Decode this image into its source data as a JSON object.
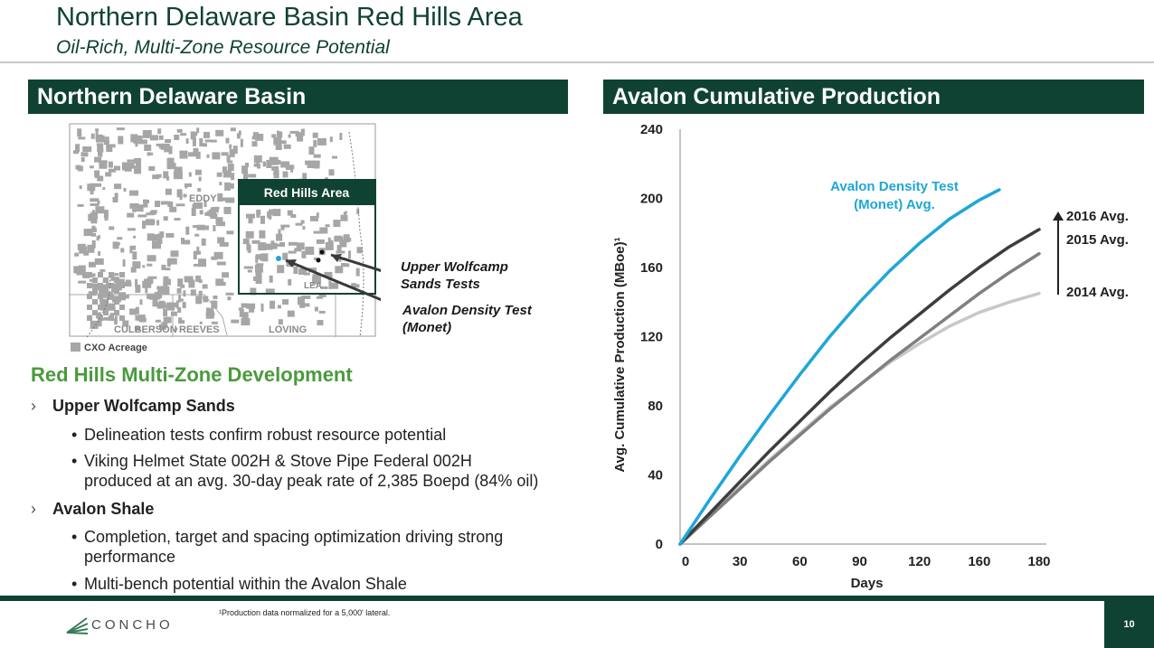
{
  "header": {
    "title": "Northern Delaware Basin Red Hills Area",
    "subtitle": "Oil-Rich, Multi-Zone Resource Potential"
  },
  "left_panel": {
    "heading": "Northern Delaware Basin",
    "map": {
      "inset_label": "Red Hills Area",
      "counties": [
        "EDDY",
        "LEA",
        "CULBERSON",
        "REEVES",
        "LOVING"
      ],
      "callout_upper_wolfcamp": [
        "Upper Wolfcamp",
        "Sands Tests"
      ],
      "callout_avalon": [
        "Avalon Density Test",
        "(Monet)"
      ],
      "legend_label": "CXO Acreage"
    },
    "section_heading": "Red Hills Multi-Zone Development",
    "bullets": [
      {
        "label": "Upper Wolfcamp Sands",
        "subs": [
          [
            "Delineation tests confirm robust resource potential"
          ],
          [
            "Viking Helmet State 002H & Stove Pipe Federal 002H",
            "produced at an avg. 30-day peak rate of 2,385 Boepd (84% oil)"
          ]
        ]
      },
      {
        "label": "Avalon Shale",
        "subs": [
          [
            "Completion, target and spacing optimization driving strong",
            "performance"
          ],
          [
            "Multi-bench potential within the Avalon Shale"
          ]
        ]
      }
    ]
  },
  "right_panel": {
    "heading": "Avalon Cumulative Production"
  },
  "chart_data": {
    "type": "line",
    "title": "Avalon Cumulative Production",
    "xlabel": "Days",
    "ylabel": "Avg. Cumulative Production (MBoe)¹",
    "xlim": [
      0,
      180
    ],
    "ylim": [
      0,
      240
    ],
    "x_ticks": [
      "0",
      "30",
      "60",
      "90",
      "120",
      "160",
      "180"
    ],
    "y_ticks": [
      "0",
      "40",
      "80",
      "120",
      "160",
      "200",
      "240"
    ],
    "grid": false,
    "series": [
      {
        "name": "Avalon Density Test (Monet) Avg.",
        "color": "#1fa6d8",
        "x": [
          0,
          15,
          30,
          45,
          60,
          75,
          90,
          105,
          120,
          135,
          150,
          160
        ],
        "y": [
          0,
          26,
          51,
          75,
          98,
          120,
          140,
          158,
          174,
          188,
          199,
          205
        ]
      },
      {
        "name": "2016 Avg.",
        "color": "#3d3d3d",
        "x": [
          0,
          15,
          30,
          45,
          60,
          75,
          90,
          105,
          120,
          135,
          150,
          165,
          180
        ],
        "y": [
          0,
          18,
          36,
          54,
          71,
          88,
          104,
          119,
          133,
          147,
          160,
          172,
          182
        ]
      },
      {
        "name": "2015 Avg.",
        "color": "#7f7f7f",
        "x": [
          0,
          15,
          30,
          45,
          60,
          75,
          90,
          105,
          120,
          135,
          150,
          165,
          180
        ],
        "y": [
          0,
          16,
          32,
          48,
          63,
          78,
          92,
          106,
          119,
          132,
          145,
          157,
          168
        ]
      },
      {
        "name": "2014 Avg.",
        "color": "#c8c8c8",
        "x": [
          0,
          15,
          30,
          45,
          60,
          75,
          90,
          105,
          120,
          135,
          150,
          165,
          180
        ],
        "y": [
          0,
          17,
          33,
          49,
          64,
          79,
          92,
          105,
          116,
          126,
          134,
          140,
          145
        ]
      }
    ],
    "annotations": [
      "Avalon Density Test",
      "(Monet) Avg.",
      "2016 Avg.",
      "2015 Avg.",
      "2014 Avg."
    ]
  },
  "footer": {
    "logo": "CONCHO",
    "footnote": "¹Production data normalized for a 5,000' lateral.",
    "page": "10"
  },
  "colors": {
    "brand_dark_green": "#0f4232",
    "section_green": "#4a9a3c",
    "acreage_gray": "#a6a6a6"
  }
}
